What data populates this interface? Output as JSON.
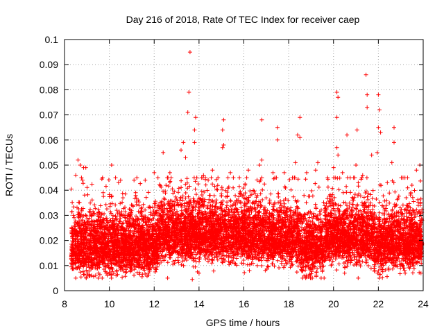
{
  "chart_data": {
    "type": "scatter",
    "title": "Day 216 of 2018, Rate Of TEC Index for receiver caep",
    "xlabel": "GPS time / hours",
    "ylabel": "ROTI / TECUs",
    "xlim": [
      8,
      24
    ],
    "ylim": [
      0,
      0.1
    ],
    "xticks": [
      8,
      10,
      12,
      14,
      16,
      18,
      20,
      22,
      24
    ],
    "xtick_labels": [
      "8",
      "10",
      "12",
      "14",
      "16",
      "18",
      "20",
      "22",
      "24"
    ],
    "yticks": [
      0,
      0.01,
      0.02,
      0.03,
      0.04,
      0.05,
      0.06,
      0.07,
      0.08,
      0.09,
      0.1
    ],
    "ytick_labels": [
      "0",
      "0.01",
      "0.02",
      "0.03",
      "0.04",
      "0.05",
      "0.06",
      "0.07",
      "0.08",
      "0.09",
      "0.1"
    ],
    "grid": true,
    "marker": "+",
    "color": "#ff0000",
    "series": [
      {
        "name": "ROTI",
        "x_range": [
          8.3,
          23.95
        ],
        "points": [
          [
            13.6,
            0.095
          ],
          [
            21.45,
            0.086
          ],
          [
            13.55,
            0.079
          ],
          [
            20.15,
            0.079
          ],
          [
            20.2,
            0.077
          ],
          [
            21.5,
            0.078
          ],
          [
            22.0,
            0.078
          ],
          [
            21.5,
            0.073
          ],
          [
            13.5,
            0.071
          ],
          [
            22.05,
            0.072
          ],
          [
            13.85,
            0.069
          ],
          [
            18.5,
            0.069
          ],
          [
            20.15,
            0.069
          ],
          [
            16.8,
            0.068
          ],
          [
            15.1,
            0.068
          ],
          [
            15.05,
            0.064
          ],
          [
            17.5,
            0.065
          ],
          [
            21.05,
            0.064
          ],
          [
            22.0,
            0.065
          ],
          [
            22.1,
            0.063
          ],
          [
            20.6,
            0.062
          ],
          [
            13.8,
            0.064
          ],
          [
            17.5,
            0.06
          ],
          [
            18.4,
            0.062
          ],
          [
            18.5,
            0.061
          ],
          [
            22.7,
            0.065
          ],
          [
            22.7,
            0.059
          ],
          [
            13.3,
            0.059
          ],
          [
            13.8,
            0.059
          ],
          [
            13.2,
            0.056
          ],
          [
            15.1,
            0.058
          ],
          [
            15.05,
            0.057
          ],
          [
            20.15,
            0.057
          ],
          [
            20.2,
            0.054
          ],
          [
            12.4,
            0.055
          ],
          [
            13.4,
            0.053
          ],
          [
            21.7,
            0.054
          ],
          [
            21.95,
            0.055
          ],
          [
            8.6,
            0.052
          ],
          [
            8.7,
            0.05
          ],
          [
            8.85,
            0.049
          ],
          [
            8.95,
            0.049
          ],
          [
            10.1,
            0.05
          ],
          [
            22.6,
            0.051
          ],
          [
            23.85,
            0.05
          ],
          [
            20.0,
            0.049
          ],
          [
            21.0,
            0.05
          ],
          [
            16.7,
            0.05
          ],
          [
            16.8,
            0.052
          ],
          [
            18.3,
            0.051
          ],
          [
            19.3,
            0.051
          ],
          [
            8.5,
            0.046
          ],
          [
            8.8,
            0.044
          ],
          [
            10.5,
            0.044
          ],
          [
            11.1,
            0.044
          ],
          [
            11.6,
            0.044
          ],
          [
            12.0,
            0.047
          ],
          [
            12.7,
            0.047
          ],
          [
            14.2,
            0.046
          ],
          [
            14.6,
            0.048
          ],
          [
            15.4,
            0.047
          ],
          [
            16.2,
            0.048
          ],
          [
            17.3,
            0.047
          ],
          [
            17.8,
            0.047
          ],
          [
            18.8,
            0.047
          ],
          [
            19.2,
            0.048
          ],
          [
            20.4,
            0.047
          ],
          [
            20.9,
            0.045
          ],
          [
            21.3,
            0.046
          ],
          [
            23.1,
            0.045
          ],
          [
            23.3,
            0.045
          ],
          [
            23.7,
            0.048
          ],
          [
            23.5,
            0.042
          ],
          [
            22.4,
            0.043
          ],
          [
            13.9,
            0.045
          ],
          [
            13.7,
            0.0045
          ],
          [
            14.0,
            0.007
          ],
          [
            8.5,
            0.005
          ],
          [
            9.2,
            0.006
          ],
          [
            10.3,
            0.006
          ],
          [
            12.6,
            0.005
          ],
          [
            18.8,
            0.0055
          ],
          [
            21.1,
            0.005
          ],
          [
            23.2,
            0.007
          ],
          [
            23.9,
            0.007
          ]
        ]
      }
    ]
  }
}
